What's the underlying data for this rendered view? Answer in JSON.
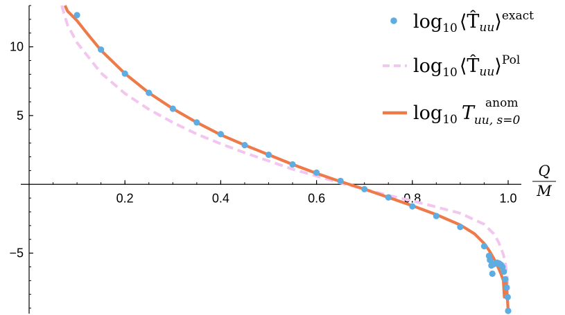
{
  "chart_data": {
    "type": "line",
    "x_axis": {
      "label_num": "Q",
      "label_den": "M",
      "range": [
        0.0,
        1.0
      ],
      "ticks": [
        "0.2",
        "0.4",
        "0.6",
        "0.8",
        "1.0"
      ],
      "tick_values": [
        0.2,
        0.4,
        0.6,
        0.8,
        1.0
      ],
      "minor_step": 0.05
    },
    "y_axis": {
      "range": [
        -9.4,
        13.0
      ],
      "ticks": [
        "10",
        "5",
        "−5"
      ],
      "tick_values": [
        10,
        5,
        -5
      ],
      "minor_step": 1
    },
    "legend_placement": "top-right",
    "series": [
      {
        "key": "exact",
        "style": "points",
        "color": "#5DADE2",
        "legend_main": "log",
        "legend_sub": "10",
        "legend_body": "⟨T̂",
        "legend_body_sub": "uu",
        "legend_close": "⟩",
        "legend_sup": "exact",
        "points": [
          [
            0.1,
            12.3
          ],
          [
            0.15,
            9.8
          ],
          [
            0.2,
            8.05
          ],
          [
            0.25,
            6.65
          ],
          [
            0.3,
            5.5
          ],
          [
            0.35,
            4.5
          ],
          [
            0.4,
            3.65
          ],
          [
            0.45,
            2.85
          ],
          [
            0.5,
            2.15
          ],
          [
            0.55,
            1.45
          ],
          [
            0.6,
            0.85
          ],
          [
            0.65,
            0.25
          ],
          [
            0.7,
            -0.35
          ],
          [
            0.75,
            -0.95
          ],
          [
            0.8,
            -1.6
          ],
          [
            0.85,
            -2.3
          ],
          [
            0.9,
            -3.1
          ],
          [
            0.95,
            -4.5
          ],
          [
            0.96,
            -5.2
          ],
          [
            0.962,
            -5.5
          ],
          [
            0.965,
            -5.9
          ],
          [
            0.967,
            -6.5
          ],
          [
            0.97,
            -5.8
          ],
          [
            0.973,
            -5.75
          ],
          [
            0.977,
            -5.7
          ],
          [
            0.981,
            -5.75
          ],
          [
            0.985,
            -5.85
          ],
          [
            0.988,
            -6.0
          ],
          [
            0.991,
            -6.35
          ],
          [
            0.994,
            -6.9
          ],
          [
            0.997,
            -7.5
          ],
          [
            0.999,
            -8.2
          ],
          [
            1.0,
            -9.2
          ]
        ]
      },
      {
        "key": "pol",
        "style": "dashed",
        "color": "#F2C6EE",
        "legend_main": "log",
        "legend_sub": "10",
        "legend_body": "⟨T̂",
        "legend_body_sub": "uu",
        "legend_close": "⟩",
        "legend_sup": "Pol",
        "points": [
          [
            0.068,
            13.0
          ],
          [
            0.08,
            11.6
          ],
          [
            0.1,
            10.3
          ],
          [
            0.15,
            8.1
          ],
          [
            0.2,
            6.6
          ],
          [
            0.25,
            5.45
          ],
          [
            0.3,
            4.5
          ],
          [
            0.35,
            3.65
          ],
          [
            0.4,
            2.95
          ],
          [
            0.45,
            2.3
          ],
          [
            0.5,
            1.7
          ],
          [
            0.55,
            1.1
          ],
          [
            0.6,
            0.6
          ],
          [
            0.65,
            0.1
          ],
          [
            0.7,
            -0.35
          ],
          [
            0.75,
            -0.8
          ],
          [
            0.8,
            -1.2
          ],
          [
            0.85,
            -1.65
          ],
          [
            0.9,
            -2.1
          ],
          [
            0.95,
            -2.9
          ],
          [
            0.97,
            -3.6
          ],
          [
            0.98,
            -4.2
          ],
          [
            0.99,
            -5.1
          ],
          [
            0.995,
            -5.9
          ],
          [
            0.998,
            -6.8
          ],
          [
            1.0,
            -7.7
          ]
        ]
      },
      {
        "key": "anom",
        "style": "solid",
        "color": "#EE7A4A",
        "legend_main": "log",
        "legend_sub": "10",
        "legend_body": "T",
        "legend_body_sub": "uu, s=0",
        "legend_close": "",
        "legend_sup": "anom",
        "points": [
          [
            0.075,
            13.0
          ],
          [
            0.08,
            12.6
          ],
          [
            0.1,
            11.9
          ],
          [
            0.125,
            10.8
          ],
          [
            0.15,
            9.75
          ],
          [
            0.2,
            8.05
          ],
          [
            0.25,
            6.65
          ],
          [
            0.3,
            5.5
          ],
          [
            0.35,
            4.5
          ],
          [
            0.4,
            3.6
          ],
          [
            0.45,
            2.85
          ],
          [
            0.5,
            2.15
          ],
          [
            0.55,
            1.45
          ],
          [
            0.6,
            0.8
          ],
          [
            0.65,
            0.2
          ],
          [
            0.7,
            -0.35
          ],
          [
            0.75,
            -0.95
          ],
          [
            0.8,
            -1.55
          ],
          [
            0.85,
            -2.2
          ],
          [
            0.9,
            -2.95
          ],
          [
            0.93,
            -3.6
          ],
          [
            0.95,
            -4.3
          ],
          [
            0.96,
            -4.8
          ],
          [
            0.97,
            -5.4
          ],
          [
            0.98,
            -6.1
          ],
          [
            0.985,
            -6.5
          ],
          [
            0.99,
            -7.0
          ],
          [
            0.992,
            -8.2
          ],
          [
            0.993,
            -6.9
          ],
          [
            0.996,
            -7.0
          ],
          [
            0.998,
            -8.0
          ],
          [
            1.0,
            -9.2
          ]
        ]
      }
    ]
  }
}
